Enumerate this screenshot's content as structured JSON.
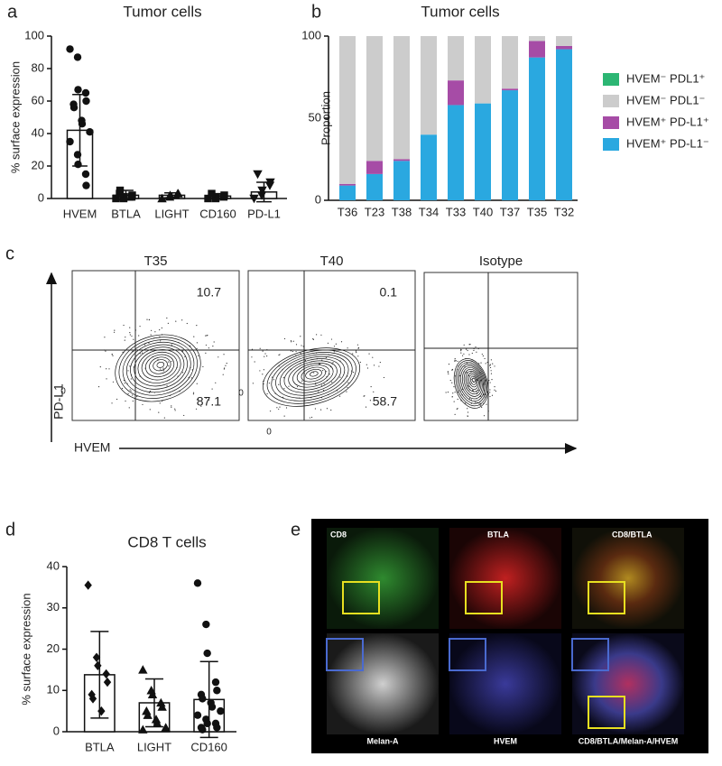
{
  "panel_labels": [
    "a",
    "b",
    "c",
    "d",
    "e"
  ],
  "chart_data": [
    {
      "type": "dot-plot",
      "title": "Tumor cells",
      "y_label": "% surface expression",
      "categories": [
        "HVEM",
        "BTLA",
        "LIGHT",
        "CD160",
        "PD-L1"
      ],
      "values": [
        42,
        2,
        2,
        1.5,
        4
      ],
      "errors": [
        22,
        3,
        1.5,
        1.5,
        6
      ],
      "markers": [
        "circle",
        "square",
        "triangle",
        "square",
        "triangle-down"
      ],
      "points": [
        [
          92,
          87,
          67,
          65,
          60,
          58,
          56,
          48,
          46,
          41,
          35,
          27,
          21,
          15,
          8
        ],
        [
          0,
          0,
          1,
          1,
          2,
          3,
          5
        ],
        [
          0,
          1,
          2,
          3,
          3
        ],
        [
          0,
          0,
          1,
          1,
          2,
          3
        ],
        [
          0,
          2,
          5,
          8,
          10,
          15
        ]
      ],
      "color": "#111111",
      "ylim": [
        0,
        100
      ],
      "yticks": [
        0,
        20,
        40,
        60,
        80,
        100
      ]
    },
    {
      "type": "stacked-bar",
      "title": "Tumor cells",
      "y_label": "Proportion",
      "categories": [
        "T36",
        "T23",
        "T38",
        "T34",
        "T33",
        "T40",
        "T37",
        "T35",
        "T32"
      ],
      "series": [
        {
          "name": "HVEM⁺ PD-L1⁻",
          "color": "#2aa8e0",
          "values": [
            9,
            16,
            24,
            40,
            58,
            59,
            67,
            87,
            92
          ]
        },
        {
          "name": "HVEM⁺ PD-L1⁺",
          "color": "#a64ca6",
          "values": [
            1,
            8,
            1,
            0,
            15,
            0,
            1,
            10,
            2
          ]
        },
        {
          "name": "HVEM⁻ PDL1⁻",
          "color": "#cccccc",
          "values": [
            90,
            76,
            75,
            60,
            27,
            41,
            32,
            3,
            6
          ]
        },
        {
          "name": "HVEM⁻ PDL1⁺",
          "color": "#2cb673",
          "values": [
            0,
            0,
            0,
            0,
            0,
            0,
            0,
            0,
            0
          ]
        }
      ],
      "ylim": [
        0,
        100
      ],
      "yticks": [
        0,
        50,
        100
      ]
    },
    {
      "type": "dot-plot",
      "title": "CD8 T cells",
      "y_label": "% surface expression",
      "categories": [
        "BTLA",
        "LIGHT",
        "CD160"
      ],
      "values": [
        13.8,
        7,
        7.8
      ],
      "errors": [
        10.5,
        5.8,
        9.2
      ],
      "markers": [
        "diamond",
        "triangle",
        "circle"
      ],
      "points": [
        [
          35.5,
          18,
          16,
          14,
          12,
          9,
          8,
          5
        ],
        [
          15,
          10,
          9,
          7,
          6,
          5,
          4,
          3,
          2,
          1,
          0.5
        ],
        [
          36,
          26,
          19,
          12,
          10,
          9,
          8,
          7,
          6,
          5,
          4,
          3,
          2,
          2,
          1,
          1,
          0.5
        ]
      ],
      "color": "#111111",
      "ylim": [
        0,
        40
      ],
      "yticks": [
        0,
        10,
        20,
        30,
        40
      ]
    }
  ],
  "flow": {
    "x_label": "HVEM",
    "y_label": "PD-L1",
    "zero_label": "0",
    "plots": [
      {
        "title": "T35",
        "upper_right": "10.7",
        "lower_right": "87.1"
      },
      {
        "title": "T40",
        "upper_right": "0.1",
        "lower_right": "58.7"
      },
      {
        "title": "Isotype"
      }
    ]
  },
  "images": {
    "labels": [
      "CD8",
      "BTLA",
      "CD8/BTLA",
      "Melan-A",
      "HVEM",
      "CD8/BTLA/Melan-A/HVEM"
    ]
  }
}
